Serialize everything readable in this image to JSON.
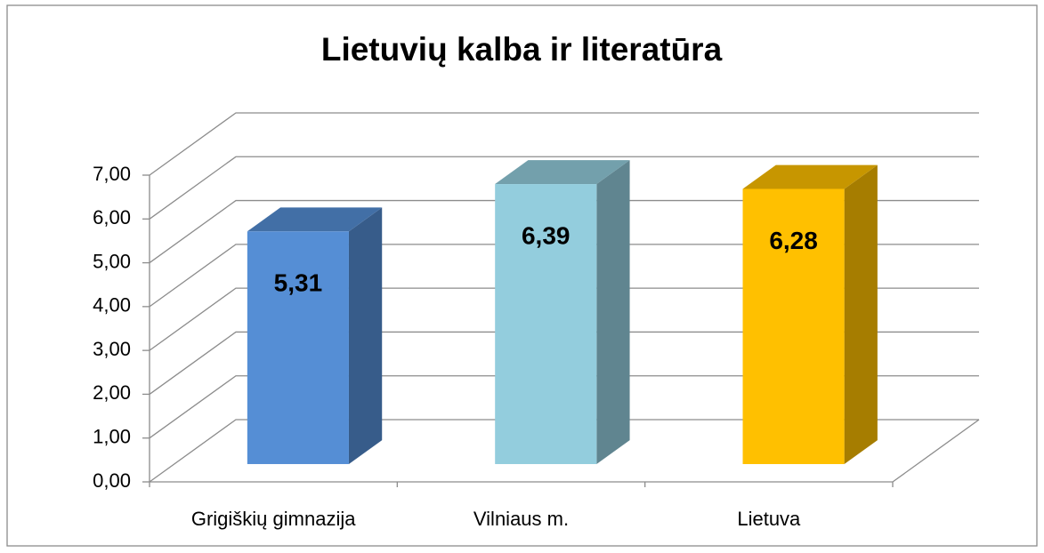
{
  "chart_data": {
    "type": "bar3d",
    "title": "Lietuvių kalba ir literatūra",
    "categories": [
      "Grigiškių gimnazija",
      "Vilniaus m.",
      "Lietuva"
    ],
    "values": [
      5.31,
      6.39,
      6.28
    ],
    "value_labels": [
      "5,31",
      "6,39",
      "6,28"
    ],
    "colors": [
      "#558ed5",
      "#93cddd",
      "#ffc000"
    ],
    "ylim": [
      0,
      7
    ],
    "yticks": [
      {
        "value": 0,
        "label": "0,00"
      },
      {
        "value": 1,
        "label": "1,00"
      },
      {
        "value": 2,
        "label": "2,00"
      },
      {
        "value": 3,
        "label": "3,00"
      },
      {
        "value": 4,
        "label": "4,00"
      },
      {
        "value": 5,
        "label": "5,00"
      },
      {
        "value": 6,
        "label": "6,00"
      },
      {
        "value": 7,
        "label": "7,00"
      }
    ],
    "grid": true
  }
}
